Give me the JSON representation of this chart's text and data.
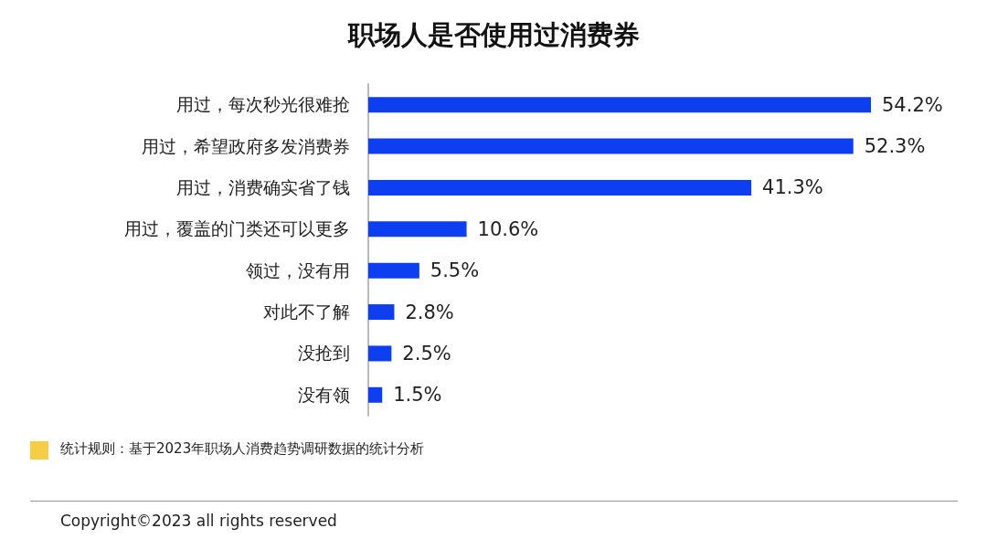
{
  "chart_data": {
    "type": "bar",
    "orientation": "horizontal",
    "title": "职场人是否使用过消费券",
    "categories": [
      "用过，每次秒光很难抢",
      "用过，希望政府多发消费券",
      "用过，消费确实省了钱",
      "用过，覆盖的门类还可以更多",
      "领过，没有用",
      "对此不了解",
      "没抢到",
      "没有领"
    ],
    "values": [
      54.2,
      52.3,
      41.3,
      10.6,
      5.5,
      2.8,
      2.5,
      1.5
    ],
    "value_labels": [
      "54.2%",
      "52.3%",
      "41.3%",
      "10.6%",
      "5.5%",
      "2.8%",
      "2.5%",
      "1.5%"
    ],
    "color": "#0d3ef0",
    "tick_labels": "y",
    "annotations": [
      "统计规则：基于2023年职场人消费趋势调研数据的统计分析",
      "Copyright©2023 all rights reserved"
    ]
  }
}
